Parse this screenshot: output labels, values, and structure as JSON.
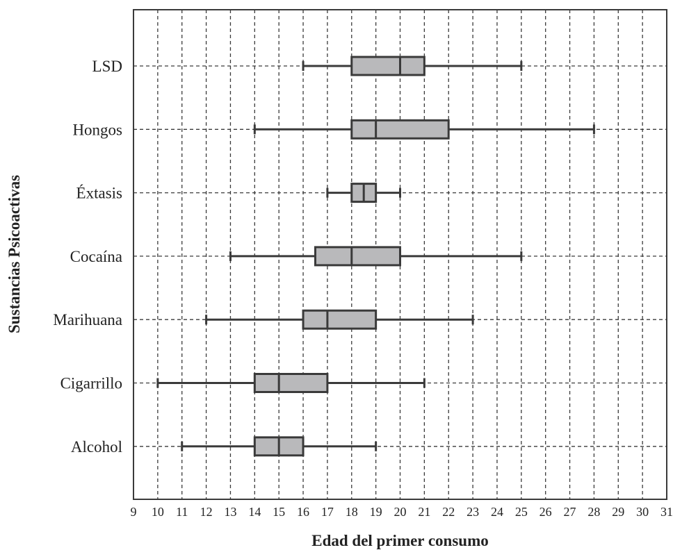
{
  "chart_data": {
    "type": "box",
    "title": "",
    "xlabel": "Edad del primer consumo",
    "ylabel": "Sustancias Psicoactivas",
    "xlim": [
      9,
      31
    ],
    "x_ticks": [
      "9",
      "10",
      "11",
      "12",
      "13",
      "14",
      "15",
      "16",
      "17",
      "18",
      "19",
      "20",
      "21",
      "22",
      "23",
      "24",
      "25",
      "26",
      "27",
      "28",
      "29",
      "30",
      "31"
    ],
    "grid": true,
    "categories": [
      "LSD",
      "Hongos",
      "Éxtasis",
      "Cocaína",
      "Marihuana",
      "Cigarrillo",
      "Alcohol"
    ],
    "boxes": [
      {
        "min": 16,
        "q1": 18,
        "median": 20,
        "q3": 21,
        "max": 25
      },
      {
        "min": 14,
        "q1": 18,
        "median": 19,
        "q3": 22,
        "max": 28
      },
      {
        "min": 17,
        "q1": 18,
        "median": 18.5,
        "q3": 19,
        "max": 20
      },
      {
        "min": 13,
        "q1": 16.5,
        "median": 18,
        "q3": 20,
        "max": 25
      },
      {
        "min": 12,
        "q1": 16,
        "median": 17,
        "q3": 19,
        "max": 23
      },
      {
        "min": 10,
        "q1": 14,
        "median": 15,
        "q3": 17,
        "max": 21
      },
      {
        "min": 11,
        "q1": 14,
        "median": 15,
        "q3": 16,
        "max": 19
      }
    ],
    "colors": {
      "box_fill": "#b9b9bb",
      "line": "#3a3a3a",
      "text": "#222222"
    }
  }
}
